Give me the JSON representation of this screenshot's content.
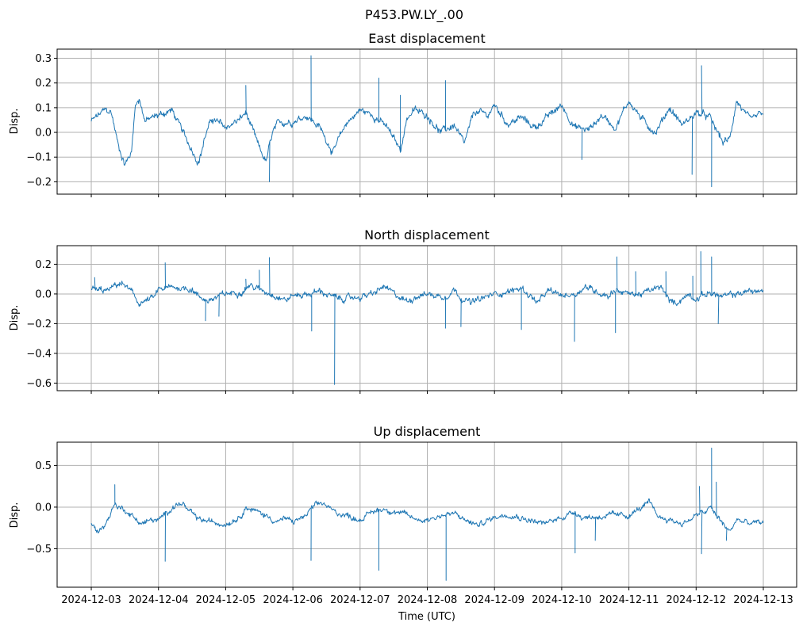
{
  "chart_data": [
    {
      "type": "line",
      "suptitle": "P453.PW.LY_.00",
      "title": "East displacement",
      "xlabel": "",
      "ylabel": "Disp.",
      "x_unit": "days since 2024-12-03 00:00 UTC",
      "xlim": [
        -0.508,
        10.496
      ],
      "ylim": [
        -0.25,
        0.337
      ],
      "yticks": [
        0.3,
        0.2,
        0.1,
        0.0,
        -0.1,
        -0.2
      ],
      "ytick_labels": [
        "0.3",
        "0.2",
        "0.1",
        "0.0",
        "−0.1",
        "−0.2"
      ],
      "grid": true,
      "color": "#1f77b4",
      "noise_amplitude": 0.015,
      "x": [
        0,
        0.2,
        0.3,
        0.4,
        0.5,
        0.6,
        0.65,
        0.72,
        0.8,
        1.0,
        1.2,
        1.4,
        1.6,
        1.7,
        1.8,
        2.0,
        2.2,
        2.3,
        2.5,
        2.6,
        2.7,
        2.8,
        3.0,
        3.2,
        3.4,
        3.6,
        3.8,
        4.0,
        4.2,
        4.4,
        4.6,
        4.7,
        4.8,
        5.0,
        5.2,
        5.4,
        5.55,
        5.7,
        5.9,
        6.0,
        6.2,
        6.4,
        6.6,
        6.8,
        7.0,
        7.2,
        7.4,
        7.6,
        7.8,
        8.0,
        8.2,
        8.4,
        8.6,
        8.8,
        9.0,
        9.2,
        9.4,
        9.5,
        9.6,
        9.8,
        10.0
      ],
      "y": [
        0.045,
        0.09,
        0.08,
        -0.05,
        -0.13,
        -0.08,
        0.11,
        0.135,
        0.045,
        0.07,
        0.09,
        -0.02,
        -0.12,
        -0.01,
        0.055,
        0.02,
        0.05,
        0.08,
        -0.065,
        -0.12,
        0.0,
        0.04,
        0.045,
        0.07,
        0.02,
        -0.08,
        0.04,
        0.09,
        0.07,
        0.02,
        -0.07,
        0.06,
        0.09,
        0.07,
        0.0,
        0.03,
        -0.05,
        0.085,
        0.07,
        0.11,
        0.035,
        0.06,
        0.02,
        0.065,
        0.11,
        0.02,
        0.01,
        0.07,
        0.02,
        0.13,
        0.05,
        0.0,
        0.1,
        0.03,
        0.08,
        0.06,
        -0.04,
        -0.03,
        0.13,
        0.045,
        0.08
      ],
      "spikes": [
        [
          2.3,
          0.19
        ],
        [
          2.65,
          -0.2
        ],
        [
          3.27,
          0.31
        ],
        [
          4.28,
          0.22
        ],
        [
          4.6,
          0.15
        ],
        [
          5.27,
          0.21
        ],
        [
          7.3,
          -0.11
        ],
        [
          8.94,
          -0.17
        ],
        [
          9.08,
          0.27
        ],
        [
          9.23,
          -0.22
        ]
      ]
    },
    {
      "type": "line",
      "title": "North displacement",
      "xlabel": "",
      "ylabel": "Disp.",
      "xlim": [
        -0.508,
        10.496
      ],
      "ylim": [
        -0.651,
        0.325
      ],
      "yticks": [
        0.2,
        0.0,
        -0.2,
        -0.4,
        -0.6
      ],
      "ytick_labels": [
        "0.2",
        "0.0",
        "−0.2",
        "−0.4",
        "−0.6"
      ],
      "grid": true,
      "color": "#1f77b4",
      "noise_amplitude": 0.022,
      "x": [
        0,
        0.25,
        0.4,
        0.5,
        0.6,
        0.7,
        0.8,
        0.95,
        1.0,
        1.25,
        1.5,
        1.6,
        1.75,
        2.0,
        2.25,
        2.35,
        2.5,
        2.7,
        2.9,
        3.0,
        3.25,
        3.4,
        3.5,
        3.65,
        3.8,
        4.0,
        4.2,
        4.35,
        4.5,
        4.7,
        4.85,
        5.0,
        5.25,
        5.4,
        5.5,
        5.65,
        6.0,
        6.25,
        6.4,
        6.55,
        6.65,
        6.8,
        7.0,
        7.2,
        7.35,
        7.5,
        7.7,
        7.8,
        8.0,
        8.2,
        8.35,
        8.5,
        8.6,
        8.7,
        8.9,
        9.0,
        9.2,
        9.4,
        9.6,
        9.8,
        10.0
      ],
      "y": [
        0.027,
        0.02,
        0.07,
        0.06,
        0.01,
        -0.06,
        -0.05,
        -0.02,
        0.03,
        0.045,
        0.035,
        -0.02,
        -0.045,
        0.0,
        0.02,
        0.06,
        0.03,
        0.0,
        -0.04,
        -0.01,
        0.0,
        0.02,
        0.0,
        -0.03,
        -0.03,
        -0.02,
        0.0,
        0.05,
        0.0,
        -0.05,
        -0.01,
        0.0,
        -0.02,
        0.03,
        -0.02,
        -0.06,
        0.0,
        0.02,
        0.04,
        -0.02,
        -0.06,
        0.02,
        -0.01,
        0.0,
        0.05,
        0.02,
        -0.01,
        0.03,
        0.0,
        0.0,
        0.03,
        0.04,
        -0.05,
        -0.06,
        0.0,
        -0.03,
        0.01,
        -0.02,
        0.0,
        0.02,
        0.02
      ],
      "spikes": [
        [
          0.05,
          0.11
        ],
        [
          1.1,
          0.21
        ],
        [
          1.7,
          -0.18
        ],
        [
          1.9,
          -0.15
        ],
        [
          2.3,
          0.1
        ],
        [
          2.5,
          0.16
        ],
        [
          2.65,
          0.245
        ],
        [
          3.28,
          -0.25
        ],
        [
          3.62,
          -0.61
        ],
        [
          5.27,
          -0.23
        ],
        [
          5.5,
          -0.22
        ],
        [
          6.4,
          -0.24
        ],
        [
          7.19,
          -0.32
        ],
        [
          7.8,
          -0.26
        ],
        [
          7.82,
          0.25
        ],
        [
          8.1,
          0.15
        ],
        [
          8.55,
          0.15
        ],
        [
          8.95,
          0.12
        ],
        [
          9.07,
          0.285
        ],
        [
          9.23,
          0.25
        ],
        [
          9.33,
          -0.2
        ]
      ]
    },
    {
      "type": "line",
      "title": "Up displacement",
      "xlabel": "Time (UTC)",
      "ylabel": "Disp.",
      "xlim": [
        -0.508,
        10.496
      ],
      "ylim": [
        -0.962,
        0.78
      ],
      "yticks": [
        0.5,
        0.0,
        -0.5
      ],
      "ytick_labels": [
        "0.5",
        "0.0",
        "−0.5"
      ],
      "xticks": [
        0,
        1,
        2,
        3,
        4,
        5,
        6,
        7,
        8,
        9,
        10
      ],
      "xtick_labels": [
        "2024-12-03",
        "2024-12-04",
        "2024-12-05",
        "2024-12-06",
        "2024-12-07",
        "2024-12-08",
        "2024-12-09",
        "2024-12-10",
        "2024-12-11",
        "2024-12-12",
        "2024-12-13"
      ],
      "grid": true,
      "color": "#1f77b4",
      "noise_amplitude": 0.035,
      "x": [
        0,
        0.1,
        0.25,
        0.3,
        0.35,
        0.4,
        0.5,
        0.6,
        0.75,
        0.9,
        1.0,
        1.1,
        1.2,
        1.35,
        1.45,
        1.6,
        1.8,
        2.0,
        2.2,
        2.3,
        2.45,
        2.6,
        2.75,
        2.9,
        3.0,
        3.2,
        3.3,
        3.45,
        3.6,
        3.8,
        4.0,
        4.2,
        4.35,
        4.5,
        4.7,
        4.85,
        5.0,
        5.2,
        5.4,
        5.55,
        5.75,
        6.0,
        6.2,
        6.3,
        6.5,
        6.75,
        7.0,
        7.2,
        7.3,
        7.5,
        7.7,
        8.0,
        8.2,
        8.3,
        8.45,
        8.6,
        8.8,
        9.0,
        9.15,
        9.2,
        9.3,
        9.4,
        9.5,
        9.6,
        9.8,
        10.0
      ],
      "y": [
        -0.2,
        -0.3,
        -0.15,
        -0.05,
        0.05,
        0.0,
        -0.03,
        -0.1,
        -0.2,
        -0.15,
        -0.17,
        -0.08,
        0.0,
        0.05,
        -0.05,
        -0.15,
        -0.18,
        -0.2,
        -0.12,
        0.0,
        -0.05,
        -0.1,
        -0.17,
        -0.14,
        -0.18,
        -0.1,
        0.0,
        0.05,
        -0.05,
        -0.1,
        -0.15,
        -0.05,
        -0.02,
        -0.05,
        -0.1,
        -0.15,
        -0.15,
        -0.1,
        -0.08,
        -0.15,
        -0.22,
        -0.12,
        -0.08,
        -0.1,
        -0.15,
        -0.2,
        -0.12,
        -0.05,
        -0.12,
        -0.12,
        -0.1,
        -0.1,
        0.0,
        0.05,
        -0.12,
        -0.15,
        -0.2,
        -0.1,
        -0.05,
        0.0,
        -0.1,
        -0.2,
        -0.3,
        -0.15,
        -0.2,
        -0.18
      ],
      "spikes": [
        [
          0.35,
          0.27
        ],
        [
          1.1,
          -0.65
        ],
        [
          3.27,
          -0.64
        ],
        [
          4.28,
          -0.76
        ],
        [
          5.28,
          -0.88
        ],
        [
          7.2,
          -0.55
        ],
        [
          7.5,
          -0.4
        ],
        [
          9.05,
          0.25
        ],
        [
          9.08,
          -0.56
        ],
        [
          9.23,
          0.71
        ],
        [
          9.3,
          0.3
        ],
        [
          9.45,
          -0.4
        ]
      ]
    }
  ]
}
